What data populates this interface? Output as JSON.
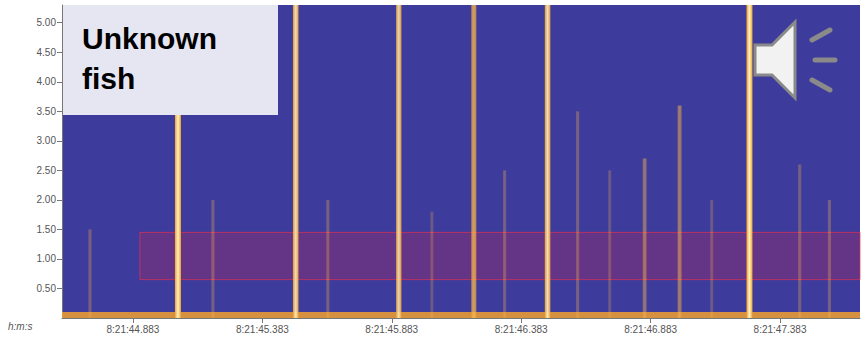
{
  "chart_data": {
    "type": "spectrogram",
    "title": "Unknown fish",
    "x_label": "h:m:s",
    "xlim": [
      30104.609,
      30107.692
    ],
    "xticks": [
      {
        "value": 30104.883,
        "label": "8:21:44.883"
      },
      {
        "value": 30105.383,
        "label": "8:21:45.383"
      },
      {
        "value": 30105.883,
        "label": "8:21:45.883"
      },
      {
        "value": 30106.383,
        "label": "8:21:46.383"
      },
      {
        "value": 30106.883,
        "label": "8:21:46.883"
      },
      {
        "value": 30107.383,
        "label": "8:21:47.383"
      }
    ],
    "ylim": [
      0,
      5.3
    ],
    "yticks": [
      {
        "value": 0.5,
        "label": "0.50"
      },
      {
        "value": 1.0,
        "label": "1.00"
      },
      {
        "value": 1.5,
        "label": "1.50"
      },
      {
        "value": 2.0,
        "label": "2.00"
      },
      {
        "value": 2.5,
        "label": "2.50"
      },
      {
        "value": 3.0,
        "label": "3.00"
      },
      {
        "value": 3.5,
        "label": "3.50"
      },
      {
        "value": 4.0,
        "label": "4.00"
      },
      {
        "value": 4.5,
        "label": "4.50"
      },
      {
        "value": 5.0,
        "label": "5.00"
      }
    ],
    "grid": false,
    "color": "#f0a030",
    "pulses": {
      "time": [
        30104.717,
        30105.057,
        30105.192,
        30105.512,
        30105.636,
        30105.91,
        30106.038,
        30106.2,
        30106.319,
        30106.485,
        30106.601,
        30106.725,
        30106.86,
        30106.995,
        30107.119,
        30107.265,
        30107.459,
        30107.574
      ],
      "top": [
        1.5,
        5.3,
        2.0,
        5.3,
        2.0,
        5.3,
        1.8,
        5.3,
        2.5,
        5.3,
        3.5,
        2.5,
        2.7,
        3.6,
        2.0,
        5.3,
        2.6,
        2.0
      ],
      "intensity": [
        0.3,
        1.0,
        0.3,
        0.9,
        0.3,
        0.85,
        0.25,
        0.75,
        0.3,
        0.9,
        0.3,
        0.25,
        0.45,
        0.5,
        0.25,
        1.0,
        0.3,
        0.3
      ]
    },
    "low_band": [
      0,
      0.1
    ],
    "selection_band": {
      "x": [
        30104.91,
        30107.692
      ],
      "y": [
        0.65,
        1.45
      ]
    }
  }
}
